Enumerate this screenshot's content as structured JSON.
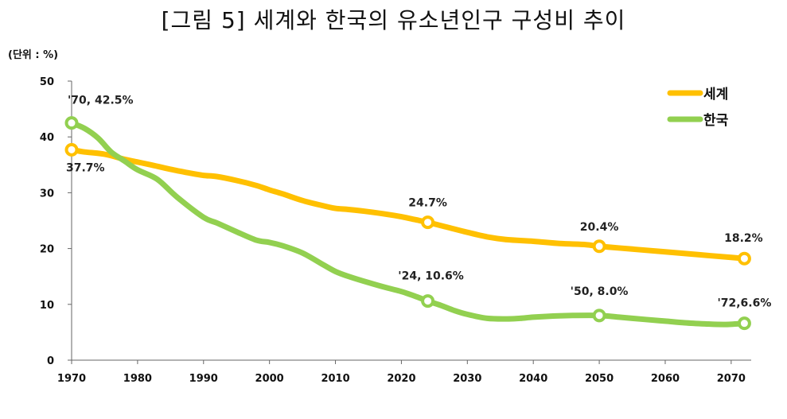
{
  "chart_data": {
    "type": "line",
    "title": "[그림 5] 세계와 한국의 유소년인구 구성비 추이",
    "unit_label": "(단위 : %)",
    "xlabel": "",
    "ylabel": "",
    "xlim": [
      1970,
      2074
    ],
    "ylim": [
      0,
      50
    ],
    "x_ticks": [
      "1970",
      "1980",
      "1990",
      "2000",
      "2010",
      "2020",
      "2030",
      "2040",
      "2050",
      "2060",
      "2070"
    ],
    "y_ticks": [
      "0",
      "10",
      "20",
      "30",
      "40",
      "50"
    ],
    "grid": false,
    "legend_position": "top-right",
    "series": [
      {
        "name": "세계",
        "color": "#FFC000",
        "points": [
          [
            1970,
            37.7
          ],
          [
            1972,
            37.3
          ],
          [
            1975,
            36.9
          ],
          [
            1978,
            36.0
          ],
          [
            1980,
            35.5
          ],
          [
            1982,
            35.0
          ],
          [
            1985,
            34.2
          ],
          [
            1988,
            33.5
          ],
          [
            1990,
            33.1
          ],
          [
            1992,
            32.9
          ],
          [
            1995,
            32.2
          ],
          [
            1998,
            31.3
          ],
          [
            2000,
            30.5
          ],
          [
            2002,
            29.8
          ],
          [
            2005,
            28.6
          ],
          [
            2008,
            27.7
          ],
          [
            2010,
            27.2
          ],
          [
            2012,
            27.0
          ],
          [
            2015,
            26.6
          ],
          [
            2018,
            26.1
          ],
          [
            2020,
            25.7
          ],
          [
            2022,
            25.2
          ],
          [
            2024,
            24.7
          ],
          [
            2027,
            23.8
          ],
          [
            2030,
            22.9
          ],
          [
            2033,
            22.1
          ],
          [
            2036,
            21.6
          ],
          [
            2040,
            21.3
          ],
          [
            2044,
            20.9
          ],
          [
            2048,
            20.7
          ],
          [
            2050,
            20.4
          ],
          [
            2055,
            19.9
          ],
          [
            2060,
            19.4
          ],
          [
            2065,
            18.9
          ],
          [
            2070,
            18.4
          ],
          [
            2072,
            18.2
          ]
        ]
      },
      {
        "name": "한국",
        "color": "#92D050",
        "points": [
          [
            1970,
            42.5
          ],
          [
            1972,
            41.5
          ],
          [
            1974,
            39.8
          ],
          [
            1976,
            37.3
          ],
          [
            1978,
            35.7
          ],
          [
            1980,
            34.1
          ],
          [
            1983,
            32.4
          ],
          [
            1986,
            29.2
          ],
          [
            1990,
            25.6
          ],
          [
            1992,
            24.6
          ],
          [
            1995,
            23.0
          ],
          [
            1998,
            21.5
          ],
          [
            2000,
            21.1
          ],
          [
            2002,
            20.5
          ],
          [
            2005,
            19.2
          ],
          [
            2008,
            17.2
          ],
          [
            2010,
            15.9
          ],
          [
            2012,
            15.0
          ],
          [
            2015,
            13.9
          ],
          [
            2018,
            12.9
          ],
          [
            2020,
            12.3
          ],
          [
            2022,
            11.5
          ],
          [
            2024,
            10.6
          ],
          [
            2026,
            9.8
          ],
          [
            2028,
            8.9
          ],
          [
            2030,
            8.2
          ],
          [
            2033,
            7.5
          ],
          [
            2036,
            7.4
          ],
          [
            2038,
            7.5
          ],
          [
            2040,
            7.7
          ],
          [
            2043,
            7.9
          ],
          [
            2046,
            8.0
          ],
          [
            2050,
            8.0
          ],
          [
            2053,
            7.7
          ],
          [
            2057,
            7.3
          ],
          [
            2060,
            7.0
          ],
          [
            2063,
            6.7
          ],
          [
            2066,
            6.5
          ],
          [
            2069,
            6.4
          ],
          [
            2072,
            6.6
          ]
        ]
      }
    ],
    "markers": [
      {
        "series": "세계",
        "x": 1970,
        "y": 37.7
      },
      {
        "series": "세계",
        "x": 2024,
        "y": 24.7
      },
      {
        "series": "세계",
        "x": 2050,
        "y": 20.4
      },
      {
        "series": "세계",
        "x": 2072,
        "y": 18.2
      },
      {
        "series": "한국",
        "x": 1970,
        "y": 42.5
      },
      {
        "series": "한국",
        "x": 2024,
        "y": 10.6
      },
      {
        "series": "한국",
        "x": 2050,
        "y": 8.0
      },
      {
        "series": "한국",
        "x": 2072,
        "y": 6.6
      }
    ],
    "data_labels": [
      {
        "text": "'70, 42.5%",
        "series": "한국",
        "x": 1970,
        "y": 42.5
      },
      {
        "text": "37.7%",
        "series": "세계",
        "x": 1970,
        "y": 37.7
      },
      {
        "text": "24.7%",
        "series": "세계",
        "x": 2024,
        "y": 24.7
      },
      {
        "text": "'24, 10.6%",
        "series": "한국",
        "x": 2024,
        "y": 10.6
      },
      {
        "text": "20.4%",
        "series": "세계",
        "x": 2050,
        "y": 20.4
      },
      {
        "text": "'50, 8.0%",
        "series": "한국",
        "x": 2050,
        "y": 8.0
      },
      {
        "text": "18.2%",
        "series": "세계",
        "x": 2072,
        "y": 18.2
      },
      {
        "text": "'72,6.6%",
        "series": "한국",
        "x": 2072,
        "y": 6.6
      }
    ]
  }
}
